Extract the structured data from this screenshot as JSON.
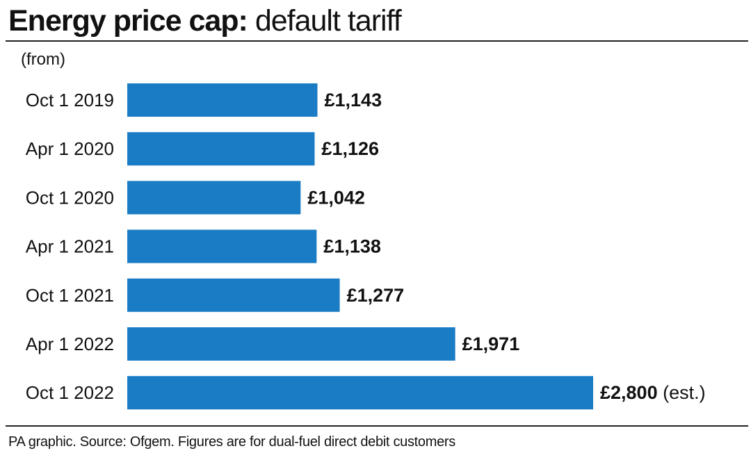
{
  "header": {
    "title_bold": "Energy price cap:",
    "title_light": "default tariff"
  },
  "footer": {
    "source": "PA graphic. Source: Ofgem. Figures are for dual-fuel direct debit customers"
  },
  "colors": {
    "bar": "#1a7cc4",
    "text": "#111111"
  },
  "chart_data": {
    "type": "bar",
    "orientation": "horizontal",
    "title": "Energy price cap: default tariff",
    "subtitle": "(from)",
    "categories": [
      "Oct 1 2019",
      "Apr 1 2020",
      "Oct 1 2020",
      "Apr 1 2021",
      "Oct 1 2021",
      "Apr 1 2022",
      "Oct 1 2022"
    ],
    "values": [
      1143,
      1126,
      1042,
      1138,
      1277,
      1971,
      2800
    ],
    "value_labels": [
      "£1,143",
      "£1,126",
      "£1,042",
      "£1,138",
      "£1,277",
      "£1,971",
      "£2,800"
    ],
    "annotations": [
      "",
      "",
      "",
      "",
      "",
      "",
      "(est.)"
    ],
    "xlabel": "",
    "ylabel": "",
    "grid": false,
    "legend": "none"
  }
}
